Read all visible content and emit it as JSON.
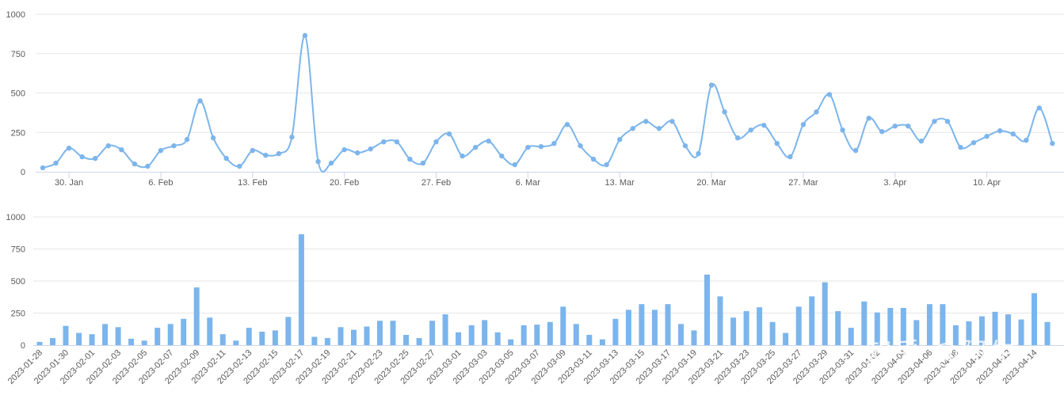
{
  "colors": {
    "series": "#7cb5ec",
    "grid": "#e6e6e6",
    "axis": "#ccd6eb",
    "text": "#5a5a5a"
  },
  "watermark": "知乎 @阿牛",
  "chart_data": [
    {
      "type": "line",
      "x_type": "date",
      "ylim": [
        0,
        1000
      ],
      "y_ticks": [
        "0",
        "250",
        "500",
        "750",
        "1000"
      ],
      "x_tick_labels": [
        "30. Jan",
        "6. Feb",
        "13. Feb",
        "20. Feb",
        "27. Feb",
        "6. Mar",
        "13. Mar",
        "20. Mar",
        "27. Mar",
        "3. Apr",
        "10. Apr"
      ],
      "grid": true,
      "x_start": "2023-01-28",
      "values": [
        25,
        55,
        150,
        95,
        85,
        165,
        140,
        50,
        35,
        135,
        165,
        205,
        450,
        215,
        85,
        35,
        135,
        105,
        115,
        220,
        865,
        65,
        55,
        140,
        120,
        145,
        190,
        190,
        80,
        55,
        190,
        240,
        100,
        155,
        195,
        100,
        45,
        155,
        160,
        180,
        300,
        165,
        80,
        45,
        205,
        275,
        320,
        275,
        320,
        165,
        115,
        550,
        380,
        215,
        265,
        295,
        180,
        95,
        300,
        380,
        490,
        265,
        135,
        340,
        255,
        290,
        290,
        195,
        320,
        320,
        155,
        185,
        225,
        260,
        240,
        200,
        405,
        180
      ]
    },
    {
      "type": "bar",
      "ylim": [
        0,
        1000
      ],
      "y_ticks": [
        "0",
        "250",
        "500",
        "750",
        "1000"
      ],
      "grid": true,
      "x_tick_labels": [
        "2023-01-28",
        "2023-01-30",
        "2023-02-01",
        "2023-02-03",
        "2023-02-05",
        "2023-02-07",
        "2023-02-09",
        "2023-02-11",
        "2023-02-13",
        "2023-02-15",
        "2023-02-17",
        "2023-02-19",
        "2023-02-21",
        "2023-02-23",
        "2023-02-25",
        "2023-02-27",
        "2023-03-01",
        "2023-03-03",
        "2023-03-05",
        "2023-03-07",
        "2023-03-09",
        "2023-03-11",
        "2023-03-13",
        "2023-03-15",
        "2023-03-17",
        "2023-03-19",
        "2023-03-21",
        "2023-03-23",
        "2023-03-25",
        "2023-03-27",
        "2023-03-29",
        "2023-03-31",
        "2023-04-02",
        "2023-04-04",
        "2023-04-06",
        "2023-04-08",
        "2023-04-10",
        "2023-04-12",
        "2023-04-14"
      ],
      "values": [
        25,
        55,
        150,
        95,
        85,
        165,
        140,
        50,
        35,
        135,
        165,
        205,
        450,
        215,
        85,
        35,
        135,
        105,
        115,
        220,
        865,
        65,
        55,
        140,
        120,
        145,
        190,
        190,
        80,
        55,
        190,
        240,
        100,
        155,
        195,
        100,
        45,
        155,
        160,
        180,
        300,
        165,
        80,
        45,
        205,
        275,
        320,
        275,
        320,
        165,
        115,
        550,
        380,
        215,
        265,
        295,
        180,
        95,
        300,
        380,
        490,
        265,
        135,
        340,
        255,
        290,
        290,
        195,
        320,
        320,
        155,
        185,
        225,
        260,
        240,
        200,
        405,
        180
      ]
    }
  ]
}
